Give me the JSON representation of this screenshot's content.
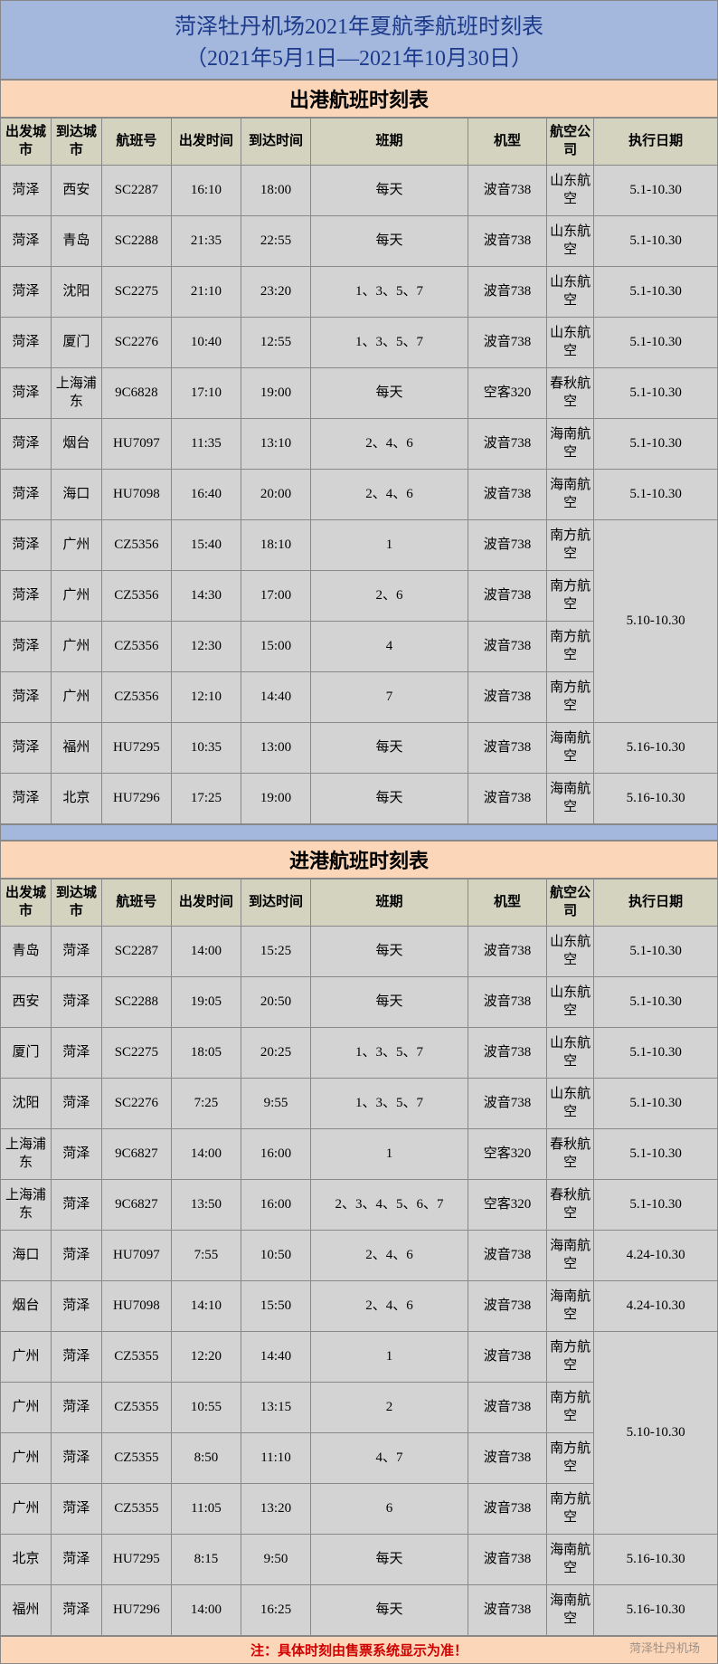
{
  "title_line1": "菏泽牡丹机场2021年夏航季航班时刻表",
  "title_line2": "（2021年5月1日—2021年10月30日）",
  "section1_title": "出港航班时刻表",
  "section2_title": "进港航班时刻表",
  "headers": {
    "from": "出发城市",
    "to": "到达城市",
    "flight": "航班号",
    "dep": "出发时间",
    "arr": "到达时间",
    "days": "班期",
    "plane": "机型",
    "airline": "航空公司",
    "period": "执行日期"
  },
  "departures": [
    {
      "from": "菏泽",
      "to": "西安",
      "flight": "SC2287",
      "dep": "16:10",
      "arr": "18:00",
      "days": "每天",
      "plane": "波音738",
      "airline": "山东航空",
      "period": "5.1-10.30",
      "merge": 1
    },
    {
      "from": "菏泽",
      "to": "青岛",
      "flight": "SC2288",
      "dep": "21:35",
      "arr": "22:55",
      "days": "每天",
      "plane": "波音738",
      "airline": "山东航空",
      "period": "5.1-10.30",
      "merge": 1
    },
    {
      "from": "菏泽",
      "to": "沈阳",
      "flight": "SC2275",
      "dep": "21:10",
      "arr": "23:20",
      "days": "1、3、5、7",
      "plane": "波音738",
      "airline": "山东航空",
      "period": "5.1-10.30",
      "merge": 1
    },
    {
      "from": "菏泽",
      "to": "厦门",
      "flight": "SC2276",
      "dep": "10:40",
      "arr": "12:55",
      "days": "1、3、5、7",
      "plane": "波音738",
      "airline": "山东航空",
      "period": "5.1-10.30",
      "merge": 1
    },
    {
      "from": "菏泽",
      "to": "上海浦东",
      "flight": "9C6828",
      "dep": "17:10",
      "arr": "19:00",
      "days": "每天",
      "plane": "空客320",
      "airline": "春秋航空",
      "period": "5.1-10.30",
      "merge": 1
    },
    {
      "from": "菏泽",
      "to": "烟台",
      "flight": "HU7097",
      "dep": "11:35",
      "arr": "13:10",
      "days": "2、4、6",
      "plane": "波音738",
      "airline": "海南航空",
      "period": "5.1-10.30",
      "merge": 1
    },
    {
      "from": "菏泽",
      "to": "海口",
      "flight": "HU7098",
      "dep": "16:40",
      "arr": "20:00",
      "days": "2、4、6",
      "plane": "波音738",
      "airline": "海南航空",
      "period": "5.1-10.30",
      "merge": 1
    },
    {
      "from": "菏泽",
      "to": "广州",
      "flight": "CZ5356",
      "dep": "15:40",
      "arr": "18:10",
      "days": "1",
      "plane": "波音738",
      "airline": "南方航空",
      "period": "5.10-10.30",
      "merge": 4
    },
    {
      "from": "菏泽",
      "to": "广州",
      "flight": "CZ5356",
      "dep": "14:30",
      "arr": "17:00",
      "days": "2、6",
      "plane": "波音738",
      "airline": "南方航空",
      "period": "",
      "merge": 0
    },
    {
      "from": "菏泽",
      "to": "广州",
      "flight": "CZ5356",
      "dep": "12:30",
      "arr": "15:00",
      "days": "4",
      "plane": "波音738",
      "airline": "南方航空",
      "period": "",
      "merge": 0
    },
    {
      "from": "菏泽",
      "to": "广州",
      "flight": "CZ5356",
      "dep": "12:10",
      "arr": "14:40",
      "days": "7",
      "plane": "波音738",
      "airline": "南方航空",
      "period": "",
      "merge": 0
    },
    {
      "from": "菏泽",
      "to": "福州",
      "flight": "HU7295",
      "dep": "10:35",
      "arr": "13:00",
      "days": "每天",
      "plane": "波音738",
      "airline": "海南航空",
      "period": "5.16-10.30",
      "merge": 1
    },
    {
      "from": "菏泽",
      "to": "北京",
      "flight": "HU7296",
      "dep": "17:25",
      "arr": "19:00",
      "days": "每天",
      "plane": "波音738",
      "airline": "海南航空",
      "period": "5.16-10.30",
      "merge": 1
    }
  ],
  "arrivals": [
    {
      "from": "青岛",
      "to": "菏泽",
      "flight": "SC2287",
      "dep": "14:00",
      "arr": "15:25",
      "days": "每天",
      "plane": "波音738",
      "airline": "山东航空",
      "period": "5.1-10.30",
      "merge": 1
    },
    {
      "from": "西安",
      "to": "菏泽",
      "flight": "SC2288",
      "dep": "19:05",
      "arr": "20:50",
      "days": "每天",
      "plane": "波音738",
      "airline": "山东航空",
      "period": "5.1-10.30",
      "merge": 1
    },
    {
      "from": "厦门",
      "to": "菏泽",
      "flight": "SC2275",
      "dep": "18:05",
      "arr": "20:25",
      "days": "1、3、5、7",
      "plane": "波音738",
      "airline": "山东航空",
      "period": "5.1-10.30",
      "merge": 1
    },
    {
      "from": "沈阳",
      "to": "菏泽",
      "flight": "SC2276",
      "dep": "7:25",
      "arr": "9:55",
      "days": "1、3、5、7",
      "plane": "波音738",
      "airline": "山东航空",
      "period": "5.1-10.30",
      "merge": 1
    },
    {
      "from": "上海浦东",
      "to": "菏泽",
      "flight": "9C6827",
      "dep": "14:00",
      "arr": "16:00",
      "days": "1",
      "plane": "空客320",
      "airline": "春秋航空",
      "period": "5.1-10.30",
      "merge": 1
    },
    {
      "from": "上海浦东",
      "to": "菏泽",
      "flight": "9C6827",
      "dep": "13:50",
      "arr": "16:00",
      "days": "2、3、4、5、6、7",
      "plane": "空客320",
      "airline": "春秋航空",
      "period": "5.1-10.30",
      "merge": 1
    },
    {
      "from": "海口",
      "to": "菏泽",
      "flight": "HU7097",
      "dep": "7:55",
      "arr": "10:50",
      "days": "2、4、6",
      "plane": "波音738",
      "airline": "海南航空",
      "period": "4.24-10.30",
      "merge": 1
    },
    {
      "from": "烟台",
      "to": "菏泽",
      "flight": "HU7098",
      "dep": "14:10",
      "arr": "15:50",
      "days": "2、4、6",
      "plane": "波音738",
      "airline": "海南航空",
      "period": "4.24-10.30",
      "merge": 1
    },
    {
      "from": "广州",
      "to": "菏泽",
      "flight": "CZ5355",
      "dep": "12:20",
      "arr": "14:40",
      "days": "1",
      "plane": "波音738",
      "airline": "南方航空",
      "period": "5.10-10.30",
      "merge": 4
    },
    {
      "from": "广州",
      "to": "菏泽",
      "flight": "CZ5355",
      "dep": "10:55",
      "arr": "13:15",
      "days": "2",
      "plane": "波音738",
      "airline": "南方航空",
      "period": "",
      "merge": 0
    },
    {
      "from": "广州",
      "to": "菏泽",
      "flight": "CZ5355",
      "dep": "8:50",
      "arr": "11:10",
      "days": "4、7",
      "plane": "波音738",
      "airline": "南方航空",
      "period": "",
      "merge": 0
    },
    {
      "from": "广州",
      "to": "菏泽",
      "flight": "CZ5355",
      "dep": "11:05",
      "arr": "13:20",
      "days": "6",
      "plane": "波音738",
      "airline": "南方航空",
      "period": "",
      "merge": 0
    },
    {
      "from": "北京",
      "to": "菏泽",
      "flight": "HU7295",
      "dep": "8:15",
      "arr": "9:50",
      "days": "每天",
      "plane": "波音738",
      "airline": "海南航空",
      "period": "5.16-10.30",
      "merge": 1
    },
    {
      "from": "福州",
      "to": "菏泽",
      "flight": "HU7296",
      "dep": "14:00",
      "arr": "16:25",
      "days": "每天",
      "plane": "波音738",
      "airline": "海南航空",
      "period": "5.16-10.30",
      "merge": 1
    }
  ],
  "footer_note": "注：具体时刻由售票系统显示为准！",
  "watermark": "菏泽牡丹机场",
  "colors": {
    "title_bg": "#a4b8de",
    "title_text": "#1d3a8a",
    "section_bg": "#fcd6b8",
    "header_bg": "#d3d3c0",
    "cell_bg": "#d3d3d3",
    "border": "#888888",
    "note_text": "#d00000"
  }
}
